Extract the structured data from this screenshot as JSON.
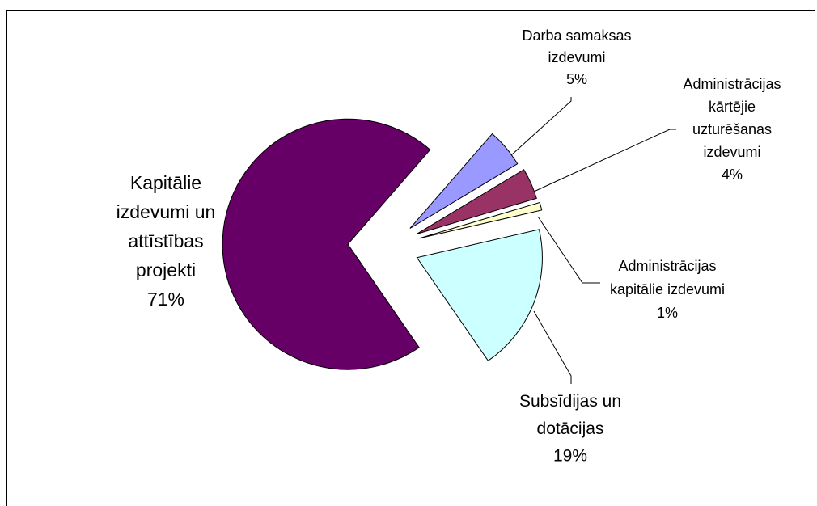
{
  "chart_data": {
    "type": "pie",
    "categories": [
      "Darba samaksas izdevumi",
      "Administrācijas kārtējie uzturēšanas izdevumi",
      "Administrācijas kapitālie izdevumi",
      "Subsīdijas un dotācijas",
      "Kapitālie izdevumi un attīstības projekti"
    ],
    "values": [
      5,
      4,
      1,
      19,
      71
    ],
    "value_labels": [
      "5%",
      "4%",
      "1%",
      "19%",
      "71%"
    ],
    "colors": [
      "#9999ff",
      "#993366",
      "#ffffcc",
      "#ccffff",
      "#660066"
    ]
  }
}
